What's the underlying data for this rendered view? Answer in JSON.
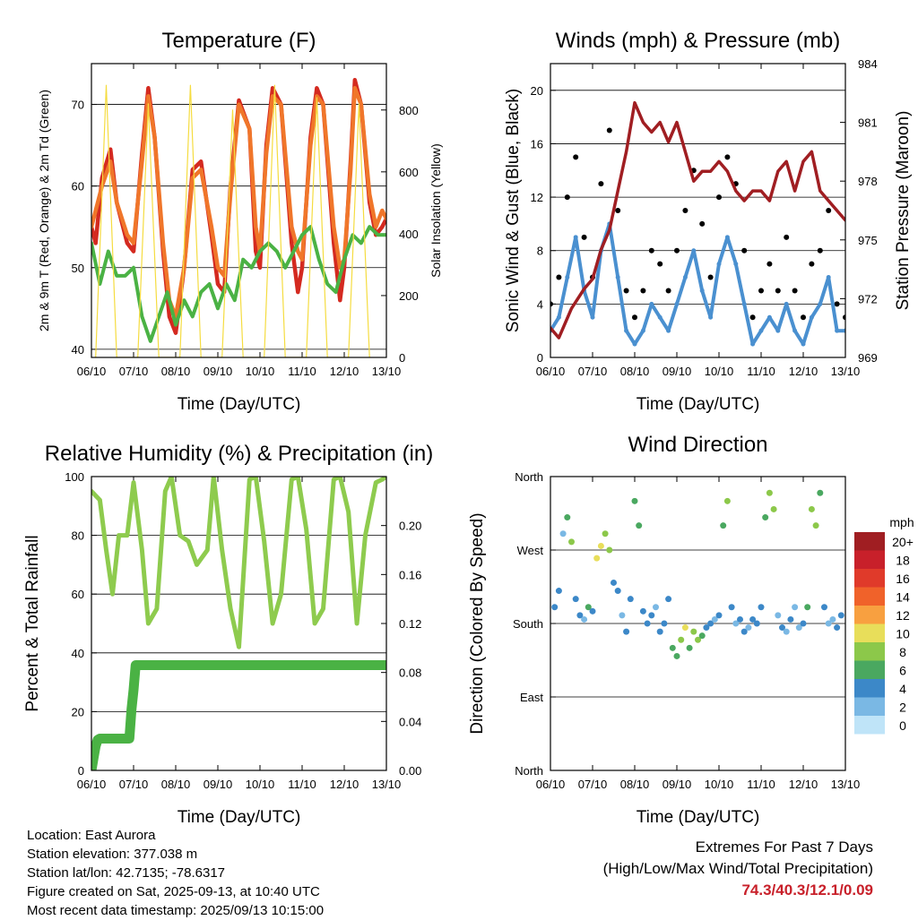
{
  "chart_data": [
    {
      "type": "line",
      "title": "Temperature (F)",
      "xlabel": "Time (Day/UTC)",
      "ylabel": "2m & 9m T (Red, Orange) & 2m Td (Green)",
      "y2label": "Solar Insolation (Yellow)",
      "xticks": [
        "06/10",
        "07/10",
        "08/10",
        "09/10",
        "10/10",
        "11/10",
        "12/10",
        "13/10"
      ],
      "ylim": [
        39,
        75
      ],
      "yticks": [
        40,
        50,
        60,
        70
      ],
      "y2lim": [
        0,
        950
      ],
      "y2ticks": [
        0,
        200,
        400,
        600,
        800
      ],
      "grid": "horizontal",
      "series": [
        {
          "role": "2m T",
          "color": "#d42a20",
          "x": [
            0,
            0.1,
            0.25,
            0.45,
            0.6,
            0.85,
            1,
            1.2,
            1.35,
            1.5,
            1.7,
            1.85,
            2,
            2.2,
            2.4,
            2.6,
            2.85,
            3,
            3.15,
            3.3,
            3.5,
            3.75,
            3.9,
            4,
            4.15,
            4.3,
            4.5,
            4.75,
            4.9,
            5,
            5.2,
            5.35,
            5.5,
            5.75,
            5.9,
            6,
            6.15,
            6.25,
            6.4,
            6.6,
            6.75,
            6.9,
            7
          ],
          "y": [
            55,
            53,
            61,
            64.5,
            58,
            53,
            52,
            64,
            72,
            66,
            52,
            44,
            42,
            50,
            62,
            63,
            54,
            48,
            47,
            60,
            70.5,
            67,
            52,
            50,
            65,
            72,
            70,
            53,
            47,
            50,
            66,
            72,
            70,
            53,
            46,
            50,
            63,
            73,
            70,
            58,
            54,
            55,
            56
          ]
        },
        {
          "role": "9m T",
          "color": "#f0762a",
          "x": [
            0,
            0.25,
            0.45,
            0.6,
            0.85,
            1,
            1.2,
            1.35,
            1.5,
            1.7,
            1.85,
            2,
            2.2,
            2.4,
            2.6,
            2.85,
            3,
            3.15,
            3.3,
            3.5,
            3.75,
            3.9,
            4,
            4.15,
            4.3,
            4.5,
            4.75,
            4.9,
            5,
            5.2,
            5.35,
            5.5,
            5.75,
            5.9,
            6,
            6.15,
            6.25,
            6.4,
            6.6,
            6.75,
            6.9,
            7
          ],
          "y": [
            55,
            60,
            63,
            58,
            54,
            53,
            63,
            71,
            66,
            53,
            46,
            44,
            50,
            61,
            62,
            55,
            50,
            49,
            59,
            70,
            67,
            55,
            52,
            64,
            71,
            70,
            55,
            52,
            51,
            65,
            71,
            70,
            55,
            50,
            51,
            62,
            72,
            70,
            59,
            55,
            57,
            56
          ]
        },
        {
          "role": "2m Td",
          "color": "#4ab244",
          "x": [
            0,
            0.2,
            0.4,
            0.6,
            0.8,
            1,
            1.2,
            1.4,
            1.6,
            1.8,
            2,
            2.2,
            2.4,
            2.6,
            2.8,
            3,
            3.2,
            3.4,
            3.6,
            3.8,
            4,
            4.2,
            4.4,
            4.6,
            4.8,
            5,
            5.2,
            5.4,
            5.6,
            5.8,
            6,
            6.2,
            6.4,
            6.6,
            6.8,
            7
          ],
          "y": [
            53,
            48,
            52,
            49,
            49,
            50,
            44,
            41,
            44,
            47,
            43,
            46,
            44,
            47,
            48,
            45,
            48,
            46,
            51,
            50,
            52,
            53,
            52,
            50,
            52,
            54,
            55,
            51,
            48,
            47,
            51,
            54,
            53,
            55,
            54,
            54
          ]
        },
        {
          "role": "Solar Insolation",
          "color": "#f5dc40",
          "x": [
            0.1,
            0.35,
            0.6,
            1.1,
            1.35,
            1.6,
            2.1,
            2.35,
            2.6,
            3.1,
            3.35,
            3.6,
            4.1,
            4.35,
            4.6,
            5.1,
            5.35,
            5.6,
            6.1,
            6.35,
            6.6
          ],
          "y": [
            0,
            880,
            0,
            0,
            820,
            0,
            0,
            880,
            0,
            0,
            800,
            0,
            0,
            880,
            0,
            0,
            840,
            0,
            0,
            820,
            0
          ]
        }
      ]
    },
    {
      "type": "scatter",
      "title": "Winds (mph) & Pressure (mb)",
      "xlabel": "Time (Day/UTC)",
      "ylabel": "Sonic Wind & Gust (Blue, Black)",
      "y2label": "Station Pressure (Maroon)",
      "xticks": [
        "06/10",
        "07/10",
        "08/10",
        "09/10",
        "10/10",
        "11/10",
        "12/10",
        "13/10"
      ],
      "ylim": [
        0,
        22
      ],
      "yticks": [
        0,
        4,
        8,
        12,
        16,
        20
      ],
      "y2lim": [
        969,
        984
      ],
      "y2ticks": [
        969,
        972,
        975,
        978,
        981,
        984
      ],
      "grid": "horizontal",
      "wind_x": [
        0,
        0.2,
        0.4,
        0.6,
        0.8,
        1,
        1.2,
        1.4,
        1.6,
        1.8,
        2,
        2.2,
        2.4,
        2.6,
        2.8,
        3,
        3.2,
        3.4,
        3.6,
        3.8,
        4,
        4.2,
        4.4,
        4.6,
        4.8,
        5,
        5.2,
        5.4,
        5.6,
        5.8,
        6,
        6.2,
        6.4,
        6.6,
        6.8,
        7
      ],
      "wind_y": [
        2,
        3,
        6,
        9,
        5,
        3,
        8,
        10,
        6,
        2,
        1,
        2,
        4,
        3,
        2,
        4,
        6,
        8,
        5,
        3,
        7,
        9,
        7,
        4,
        1,
        2,
        3,
        2,
        4,
        2,
        1,
        3,
        4,
        6,
        2,
        2
      ],
      "gust_y": [
        4,
        6,
        12,
        15,
        9,
        6,
        13,
        17,
        11,
        5,
        3,
        5,
        8,
        7,
        5,
        8,
        11,
        14,
        10,
        6,
        12,
        15,
        13,
        8,
        3,
        5,
        7,
        5,
        9,
        5,
        3,
        7,
        8,
        11,
        4,
        3
      ],
      "pressure_x": [
        0,
        0.2,
        0.5,
        0.8,
        1,
        1.2,
        1.4,
        1.6,
        1.8,
        2,
        2.2,
        2.4,
        2.6,
        2.8,
        3,
        3.2,
        3.4,
        3.6,
        3.8,
        4,
        4.2,
        4.4,
        4.6,
        4.8,
        5,
        5.2,
        5.4,
        5.6,
        5.8,
        6,
        6.2,
        6.4,
        6.6,
        6.8,
        7
      ],
      "pressure_y": [
        970.5,
        970,
        971.5,
        972.5,
        973,
        974.5,
        975.5,
        977.5,
        979.5,
        982,
        981,
        980.5,
        981,
        980,
        981,
        979.5,
        978,
        978.5,
        978.5,
        979,
        978.5,
        977.5,
        977,
        977.5,
        977.5,
        977,
        978.5,
        979,
        977.5,
        979,
        979.5,
        977.5,
        977,
        976.5,
        976
      ]
    },
    {
      "type": "line",
      "title": "Relative Humidity (%) & Precipitation (in)",
      "xlabel": "Time (Day/UTC)",
      "ylabel": "Percent & Total Rainfall",
      "xticks": [
        "06/10",
        "07/10",
        "08/10",
        "09/10",
        "10/10",
        "11/10",
        "12/10",
        "13/10"
      ],
      "ylim": [
        0,
        100
      ],
      "yticks": [
        0,
        20,
        40,
        60,
        80,
        100
      ],
      "y2lim": [
        0,
        0.24
      ],
      "y2ticks": [
        "0.00",
        "0.04",
        "0.08",
        "0.12",
        "0.16",
        "0.20"
      ],
      "grid": "horizontal",
      "series": [
        {
          "role": "Relative Humidity",
          "color": "#8ecb4e",
          "x": [
            0,
            0.2,
            0.35,
            0.5,
            0.65,
            0.85,
            1,
            1.2,
            1.35,
            1.55,
            1.75,
            1.9,
            2.1,
            2.3,
            2.5,
            2.75,
            2.9,
            3.1,
            3.3,
            3.5,
            3.75,
            3.9,
            4.1,
            4.3,
            4.5,
            4.75,
            4.9,
            5.1,
            5.3,
            5.5,
            5.75,
            5.9,
            6.1,
            6.3,
            6.5,
            6.75,
            6.9,
            7
          ],
          "y": [
            95,
            92,
            75,
            60,
            80,
            80,
            98,
            75,
            50,
            55,
            95,
            100,
            80,
            78,
            70,
            75,
            100,
            75,
            55,
            42,
            99,
            100,
            78,
            50,
            60,
            99,
            100,
            82,
            50,
            55,
            99,
            100,
            88,
            50,
            80,
            98,
            99,
            100
          ]
        },
        {
          "role": "Total Rainfall",
          "color": "#4ab244",
          "x": [
            0,
            0.05,
            0.1,
            0.15,
            0.2,
            0.9,
            0.95,
            1,
            1.05,
            1.3,
            7
          ],
          "y": [
            0,
            0.01,
            0.02,
            0.025,
            0.026,
            0.026,
            0.05,
            0.066,
            0.086,
            0.086,
            0.086
          ]
        }
      ]
    },
    {
      "type": "scatter",
      "title": "Wind Direction",
      "xlabel": "Time (Day/UTC)",
      "ylabel": "Direction (Colored By Speed)",
      "xticks": [
        "06/10",
        "07/10",
        "08/10",
        "09/10",
        "10/10",
        "11/10",
        "12/10",
        "13/10"
      ],
      "yticks": [
        "North",
        "East",
        "South",
        "West",
        "North"
      ],
      "ylim": [
        0,
        360
      ],
      "grid": "horizontal",
      "colorbar": {
        "title": "mph",
        "labels": [
          "20+",
          "18",
          "16",
          "14",
          "12",
          "10",
          "8",
          "6",
          "4",
          "2",
          "0"
        ],
        "colors": [
          "#a01e22",
          "#c8202a",
          "#e03a2a",
          "#f0622a",
          "#f8a040",
          "#e8de5a",
          "#8cc84a",
          "#4aa860",
          "#3c88c8",
          "#7ab8e4",
          "#bfe4f8"
        ]
      },
      "x": [
        0.1,
        0.2,
        0.3,
        0.4,
        0.5,
        0.6,
        0.7,
        0.8,
        0.9,
        1.0,
        1.1,
        1.2,
        1.3,
        1.4,
        1.5,
        1.6,
        1.7,
        1.8,
        1.9,
        2.0,
        2.1,
        2.2,
        2.3,
        2.4,
        2.5,
        2.6,
        2.7,
        2.8,
        2.9,
        3.0,
        3.1,
        3.2,
        3.3,
        3.4,
        3.5,
        3.6,
        3.7,
        3.8,
        3.9,
        4.0,
        4.1,
        4.2,
        4.3,
        4.4,
        4.5,
        4.6,
        4.7,
        4.8,
        4.9,
        5.0,
        5.1,
        5.2,
        5.3,
        5.4,
        5.5,
        5.6,
        5.7,
        5.8,
        5.9,
        6.0,
        6.1,
        6.2,
        6.3,
        6.4,
        6.5,
        6.6,
        6.7,
        6.8,
        6.9
      ],
      "y": [
        200,
        220,
        290,
        310,
        280,
        210,
        190,
        185,
        200,
        195,
        260,
        275,
        290,
        270,
        230,
        220,
        190,
        170,
        210,
        330,
        300,
        195,
        180,
        190,
        200,
        170,
        180,
        210,
        150,
        140,
        160,
        175,
        150,
        170,
        160,
        165,
        175,
        180,
        185,
        190,
        300,
        330,
        200,
        180,
        185,
        170,
        175,
        185,
        180,
        200,
        310,
        340,
        320,
        190,
        175,
        170,
        185,
        200,
        175,
        180,
        200,
        320,
        300,
        340,
        200,
        180,
        185,
        175,
        190
      ],
      "speed": [
        3,
        4,
        2,
        6,
        8,
        4,
        3,
        2,
        5,
        4,
        9,
        10,
        8,
        7,
        3,
        4,
        2,
        3,
        4,
        5,
        6,
        3,
        4,
        3,
        2,
        3,
        4,
        3,
        6,
        5,
        8,
        9,
        6,
        7,
        8,
        6,
        4,
        3,
        2,
        4,
        6,
        7,
        3,
        2,
        3,
        4,
        2,
        3,
        4,
        3,
        6,
        8,
        7,
        2,
        3,
        2,
        3,
        2,
        2,
        3,
        6,
        8,
        7,
        6,
        3,
        2,
        2,
        3,
        4
      ]
    }
  ],
  "footer": {
    "location": "Location: East Aurora",
    "elevation": "Station elevation: 377.038 m",
    "latlon": "Station lat/lon: 42.7135; -78.6317",
    "created": "Figure created on Sat, 2025-09-13, at 10:40 UTC",
    "recent": "Most recent data timestamp: 2025/09/13 10:15:00"
  },
  "extremes": {
    "title": "Extremes For Past 7 Days",
    "subtitle": "(High/Low/Max Wind/Total Precipitation)",
    "values": "74.3/40.3/12.1/0.09",
    "color": "#c8202a"
  }
}
